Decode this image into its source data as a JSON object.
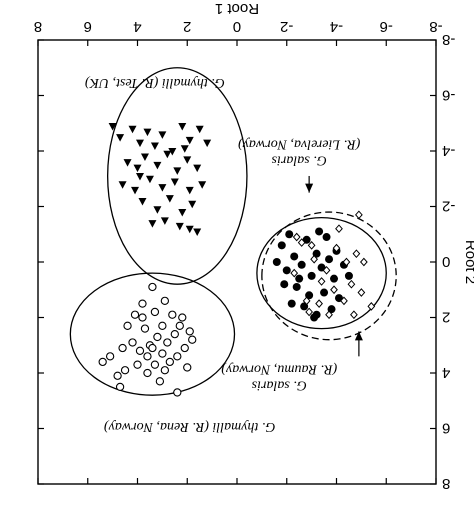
{
  "chart_data": {
    "type": "scatter",
    "orientation": "rotated-180",
    "xlabel": "Root 1",
    "ylabel": "Root 2",
    "xlim": [
      -8,
      8
    ],
    "ylim": [
      -8,
      8
    ],
    "x_ticks": [
      -8,
      -6,
      -4,
      -2,
      0,
      2,
      4,
      6,
      8
    ],
    "y_ticks": [
      -8,
      -6,
      -4,
      -2,
      0,
      2,
      4,
      6,
      8
    ],
    "x_tick_labels": [
      "-8",
      "-6",
      "-4",
      "-2",
      "0",
      "2",
      "4",
      "6",
      "8"
    ],
    "y_tick_labels": [
      "-8",
      "-6",
      "-4",
      "-2",
      "0",
      "2",
      "4",
      "6",
      "8"
    ],
    "grid": false,
    "series": [
      {
        "name": "G. thymalli (R. Test, UK)",
        "marker": "filled-triangle",
        "ellipse": "solid",
        "points": [
          [
            5.0,
            -4.9
          ],
          [
            4.7,
            -4.5
          ],
          [
            4.2,
            -4.8
          ],
          [
            3.9,
            -4.3
          ],
          [
            3.6,
            -4.7
          ],
          [
            3.3,
            -4.2
          ],
          [
            3.0,
            -4.6
          ],
          [
            2.6,
            -4.0
          ],
          [
            2.2,
            -4.9
          ],
          [
            1.9,
            -4.4
          ],
          [
            1.5,
            -4.8
          ],
          [
            1.2,
            -4.3
          ],
          [
            4.4,
            -3.6
          ],
          [
            4.0,
            -3.4
          ],
          [
            3.7,
            -3.8
          ],
          [
            3.2,
            -3.5
          ],
          [
            2.8,
            -3.9
          ],
          [
            2.4,
            -3.3
          ],
          [
            2.0,
            -3.7
          ],
          [
            1.6,
            -3.4
          ],
          [
            4.6,
            -2.8
          ],
          [
            4.1,
            -2.6
          ],
          [
            3.5,
            -3.0
          ],
          [
            3.0,
            -2.7
          ],
          [
            2.5,
            -2.9
          ],
          [
            1.9,
            -2.6
          ],
          [
            1.4,
            -2.8
          ],
          [
            3.8,
            -2.2
          ],
          [
            3.2,
            -1.9
          ],
          [
            2.7,
            -2.3
          ],
          [
            2.2,
            -1.8
          ],
          [
            1.8,
            -2.1
          ],
          [
            3.4,
            -1.4
          ],
          [
            2.9,
            -1.5
          ],
          [
            2.3,
            -1.3
          ],
          [
            1.9,
            -1.2
          ],
          [
            1.6,
            -1.1
          ],
          [
            3.9,
            -3.1
          ],
          [
            2.1,
            -4.1
          ]
        ]
      },
      {
        "name": "G. thymalli (R. Rena, Norway)",
        "marker": "open-circle",
        "ellipse": "solid",
        "points": [
          [
            3.4,
            0.9
          ],
          [
            2.9,
            1.4
          ],
          [
            3.8,
            1.5
          ],
          [
            2.6,
            1.9
          ],
          [
            3.3,
            1.8
          ],
          [
            4.1,
            1.9
          ],
          [
            2.2,
            2.0
          ],
          [
            3.0,
            2.3
          ],
          [
            3.7,
            2.4
          ],
          [
            4.4,
            2.3
          ],
          [
            2.5,
            2.6
          ],
          [
            3.2,
            2.7
          ],
          [
            1.9,
            2.5
          ],
          [
            2.8,
            2.9
          ],
          [
            3.5,
            3.0
          ],
          [
            4.2,
            2.9
          ],
          [
            2.1,
            3.1
          ],
          [
            3.9,
            3.2
          ],
          [
            3.0,
            3.3
          ],
          [
            2.4,
            3.4
          ],
          [
            3.6,
            3.4
          ],
          [
            4.6,
            3.1
          ],
          [
            2.7,
            3.6
          ],
          [
            3.3,
            3.7
          ],
          [
            4.0,
            3.7
          ],
          [
            2.0,
            3.8
          ],
          [
            2.9,
            3.9
          ],
          [
            3.6,
            4.0
          ],
          [
            4.5,
            3.9
          ],
          [
            5.4,
            3.6
          ],
          [
            3.1,
            4.3
          ],
          [
            4.8,
            4.1
          ],
          [
            2.4,
            4.7
          ],
          [
            3.8,
            2.0
          ],
          [
            2.3,
            2.3
          ],
          [
            3.4,
            3.1
          ],
          [
            5.1,
            3.4
          ],
          [
            1.8,
            2.8
          ],
          [
            4.7,
            4.5
          ]
        ]
      },
      {
        "name": "G. salaris (R. Lierelva, Norway)",
        "marker": "filled-circle",
        "ellipse": "solid",
        "points": [
          [
            -1.8,
            -0.6
          ],
          [
            -2.3,
            -0.2
          ],
          [
            -2.8,
            -0.8
          ],
          [
            -3.2,
            -0.3
          ],
          [
            -3.6,
            -0.9
          ],
          [
            -4.0,
            -0.4
          ],
          [
            -2.0,
            0.3
          ],
          [
            -2.6,
            0.1
          ],
          [
            -3.0,
            0.5
          ],
          [
            -3.4,
            0.2
          ],
          [
            -3.9,
            0.6
          ],
          [
            -4.3,
            0.1
          ],
          [
            -1.9,
            0.8
          ],
          [
            -2.4,
            0.9
          ],
          [
            -2.9,
            1.2
          ],
          [
            -3.5,
            1.1
          ],
          [
            -4.1,
            1.3
          ],
          [
            -2.2,
            1.5
          ],
          [
            -2.7,
            1.6
          ],
          [
            -3.2,
            1.9
          ],
          [
            -3.8,
            1.7
          ],
          [
            -1.6,
            0.0
          ],
          [
            -4.5,
            0.5
          ],
          [
            -3.3,
            -1.1
          ],
          [
            -2.1,
            -1.0
          ],
          [
            -3.1,
            2.0
          ],
          [
            -2.5,
            0.6
          ],
          [
            -3.7,
            -0.1
          ]
        ]
      },
      {
        "name": "G. salaris (R. Raumu, Norway)",
        "marker": "open-diamond",
        "ellipse": "dashed",
        "points": [
          [
            -2.6,
            -0.7
          ],
          [
            -3.1,
            -0.1
          ],
          [
            -3.6,
            0.3
          ],
          [
            -4.0,
            -0.5
          ],
          [
            -4.4,
            0.0
          ],
          [
            -4.8,
            -0.3
          ],
          [
            -5.1,
            0.0
          ],
          [
            -3.4,
            0.7
          ],
          [
            -3.9,
            1.0
          ],
          [
            -4.3,
            1.4
          ],
          [
            -2.8,
            1.4
          ],
          [
            -3.3,
            1.5
          ],
          [
            -2.3,
            0.4
          ],
          [
            -4.6,
            0.8
          ],
          [
            -5.0,
            1.1
          ],
          [
            -5.4,
            1.6
          ],
          [
            -4.9,
            -1.7
          ],
          [
            -4.1,
            -1.2
          ],
          [
            -3.7,
            1.9
          ],
          [
            -2.9,
            1.8
          ],
          [
            -4.7,
            1.9
          ],
          [
            -3.0,
            -0.6
          ],
          [
            -2.4,
            -0.9
          ]
        ]
      }
    ],
    "ellipses": [
      {
        "label": "G. thymalli (R. Test, UK)",
        "center": [
          2.4,
          -3.1
        ],
        "radius_x": 2.8,
        "radius_y": 3.9,
        "style": "solid"
      },
      {
        "label": "G. thymalli (R. Rena, Norway)",
        "center": [
          3.4,
          2.6
        ],
        "radius_x": 3.3,
        "radius_y": 2.2,
        "style": "solid"
      },
      {
        "label": "G. salaris (R. Lierelva, Norway)",
        "center": [
          -3.4,
          0.4
        ],
        "radius_x": 2.6,
        "radius_y": 2.0,
        "style": "solid"
      },
      {
        "label": "G. salaris (R. Raumu, Norway)",
        "center": [
          -3.7,
          0.5
        ],
        "radius_x": 2.7,
        "radius_y": 2.3,
        "style": "dashed"
      }
    ],
    "annotations": [
      {
        "lines": [
          "G. thymalli (R. Test, UK)"
        ],
        "anchor": [
          3.3,
          -6.6
        ]
      },
      {
        "lines": [
          "G. salaris",
          "(R. Lierelva, Norway)"
        ],
        "anchor": [
          -2.5,
          -3.8
        ],
        "arrow_to": [
          -2.9,
          -2.5
        ],
        "arrow_from": [
          -2.9,
          -3.1
        ]
      },
      {
        "lines": [
          "G. salaris",
          "(R. Raumu, Norway)"
        ],
        "anchor": [
          -1.7,
          4.3
        ],
        "arrow_to": [
          -4.9,
          2.5
        ],
        "arrow_from": [
          -4.9,
          3.4
        ]
      },
      {
        "lines": [
          "G. thymalli (R. Rena, Norway)"
        ],
        "anchor": [
          1.9,
          5.8
        ]
      }
    ]
  }
}
